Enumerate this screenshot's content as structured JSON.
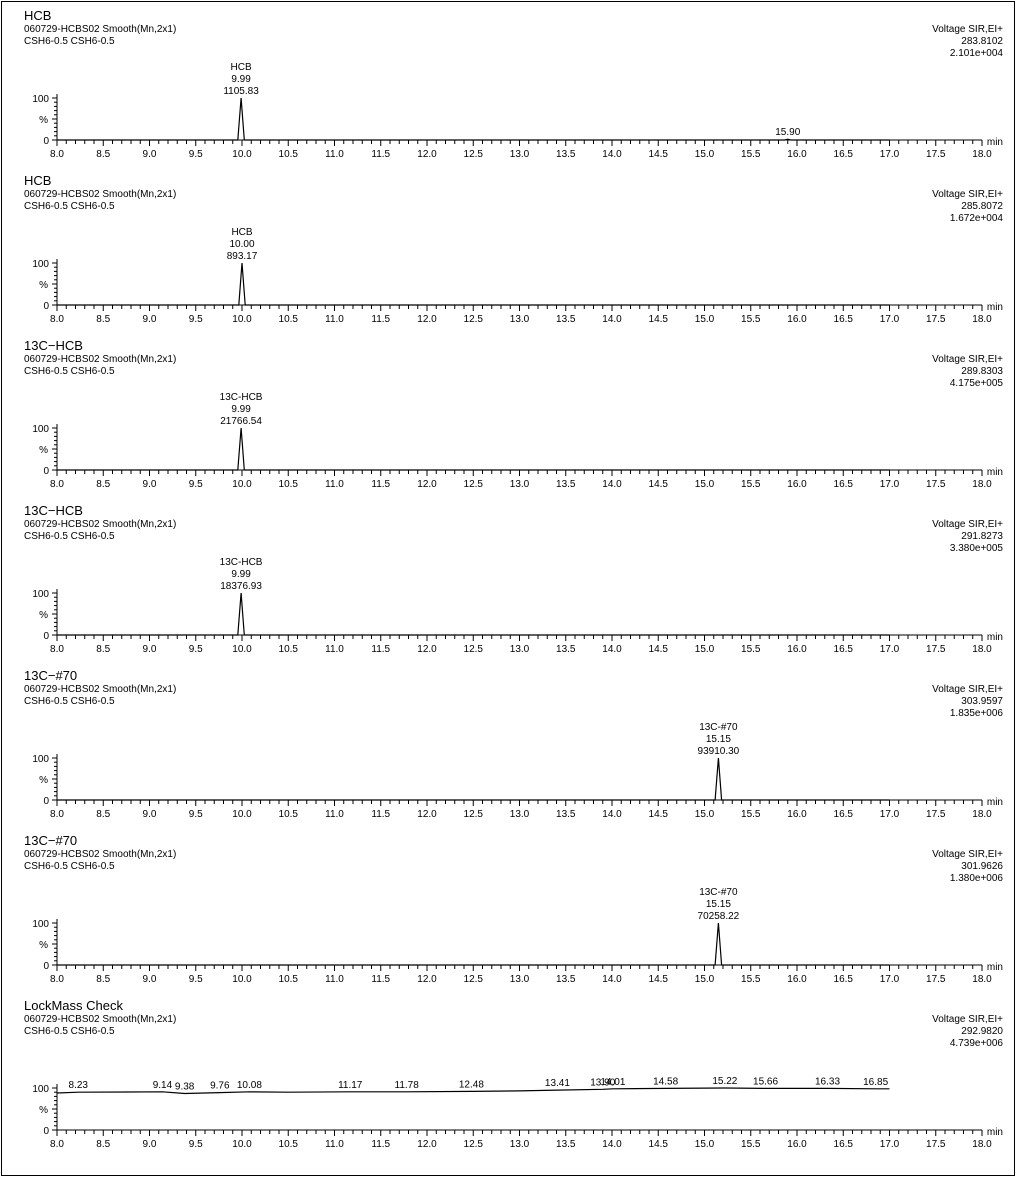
{
  "x_axis": {
    "min": 8.0,
    "max": 18.0,
    "labels": [
      "8.0",
      "8.5",
      "9.0",
      "9.5",
      "10.0",
      "10.5",
      "11.0",
      "11.5",
      "12.0",
      "12.5",
      "13.0",
      "13.5",
      "14.0",
      "14.5",
      "15.0",
      "15.5",
      "16.0",
      "16.5",
      "17.0",
      "17.5",
      "18.0"
    ],
    "unit": "min"
  },
  "y_axis": {
    "ticks": [
      "100",
      "%",
      "0"
    ]
  },
  "chart_data": [
    {
      "type": "line",
      "title": "HCB",
      "sample": "060729-HCBS02  Smooth(Mn,2x1)",
      "subtitle": "CSH6-0.5 CSH6-0.5",
      "channel": "Voltage SIR,EI+",
      "mass": "283.8102",
      "intensity": "2.101e+004",
      "x_range": [
        8.0,
        17.0
      ],
      "peaks": [
        {
          "rt": 9.99,
          "height": 100,
          "labels": [
            "HCB",
            "9.99",
            "1105.83"
          ]
        },
        {
          "rt": 15.9,
          "height": 2,
          "labels": [
            "15.90"
          ]
        }
      ]
    },
    {
      "type": "line",
      "title": "HCB",
      "sample": "060729-HCBS02  Smooth(Mn,2x1)",
      "subtitle": "CSH6-0.5 CSH6-0.5",
      "channel": "Voltage SIR,EI+",
      "mass": "285.8072",
      "intensity": "1.672e+004",
      "x_range": [
        8.0,
        17.0
      ],
      "peaks": [
        {
          "rt": 10.0,
          "height": 100,
          "labels": [
            "HCB",
            "10.00",
            "893.17"
          ]
        }
      ]
    },
    {
      "type": "line",
      "title": "13C−HCB",
      "sample": "060729-HCBS02  Smooth(Mn,2x1)",
      "subtitle": "CSH6-0.5 CSH6-0.5",
      "channel": "Voltage SIR,EI+",
      "mass": "289.8303",
      "intensity": "4.175e+005",
      "x_range": [
        8.0,
        17.0
      ],
      "peaks": [
        {
          "rt": 9.99,
          "height": 100,
          "labels": [
            "13C-HCB",
            "9.99",
            "21766.54"
          ]
        }
      ]
    },
    {
      "type": "line",
      "title": "13C−HCB",
      "sample": "060729-HCBS02  Smooth(Mn,2x1)",
      "subtitle": "CSH6-0.5 CSH6-0.5",
      "channel": "Voltage SIR,EI+",
      "mass": "291.8273",
      "intensity": "3.380e+005",
      "x_range": [
        8.0,
        17.0
      ],
      "peaks": [
        {
          "rt": 9.99,
          "height": 100,
          "labels": [
            "13C-HCB",
            "9.99",
            "18376.93"
          ]
        }
      ]
    },
    {
      "type": "line",
      "title": "13C−#70",
      "sample": "060729-HCBS02  Smooth(Mn,2x1)",
      "subtitle": "CSH6-0.5 CSH6-0.5",
      "channel": "Voltage SIR,EI+",
      "mass": "303.9597",
      "intensity": "1.835e+006",
      "x_range": [
        8.0,
        17.0
      ],
      "peaks": [
        {
          "rt": 15.15,
          "height": 100,
          "labels": [
            "13C-#70",
            "15.15",
            "93910.30"
          ]
        }
      ]
    },
    {
      "type": "line",
      "title": "13C−#70",
      "sample": "060729-HCBS02  Smooth(Mn,2x1)",
      "subtitle": "CSH6-0.5 CSH6-0.5",
      "channel": "Voltage SIR,EI+",
      "mass": "301.9626",
      "intensity": "1.380e+006",
      "x_range": [
        8.0,
        17.0
      ],
      "peaks": [
        {
          "rt": 15.15,
          "height": 100,
          "labels": [
            "13C-#70",
            "15.15",
            "70258.22"
          ]
        }
      ]
    },
    {
      "type": "line",
      "title": "LockMass Check",
      "sample": "060729-HCBS02  Smooth(Mn,2x1)",
      "subtitle": "CSH6-0.5 CSH6-0.5",
      "channel": "Voltage SIR,EI+",
      "mass": "292.9820",
      "intensity": "4.739e+006",
      "x_range": [
        8.0,
        17.0
      ],
      "trace": {
        "x": [
          8.0,
          8.23,
          9.14,
          9.38,
          9.76,
          10.08,
          10.5,
          11.17,
          11.78,
          12.48,
          13.0,
          13.41,
          13.9,
          14.01,
          14.58,
          15.22,
          15.66,
          16.33,
          16.85,
          17.0
        ],
        "y": [
          88,
          90,
          91,
          87,
          89,
          91,
          90,
          91,
          91,
          92,
          93,
          95,
          97,
          98,
          99,
          100,
          99,
          99,
          98,
          98
        ]
      },
      "peaks": [
        {
          "rt": 8.23,
          "height": 90,
          "labels": [
            "8.23"
          ]
        },
        {
          "rt": 9.14,
          "height": 91,
          "labels": [
            "9.14"
          ]
        },
        {
          "rt": 9.38,
          "height": 87,
          "labels": [
            "9.38"
          ]
        },
        {
          "rt": 9.76,
          "height": 89,
          "labels": [
            "9.76"
          ]
        },
        {
          "rt": 10.08,
          "height": 91,
          "labels": [
            "10.08"
          ]
        },
        {
          "rt": 11.17,
          "height": 91,
          "labels": [
            "11.17"
          ]
        },
        {
          "rt": 11.78,
          "height": 91,
          "labels": [
            "11.78"
          ]
        },
        {
          "rt": 12.48,
          "height": 92,
          "labels": [
            "12.48"
          ]
        },
        {
          "rt": 13.41,
          "height": 95,
          "labels": [
            "13.41"
          ]
        },
        {
          "rt": 13.9,
          "height": 97,
          "labels": [
            "13.90"
          ]
        },
        {
          "rt": 14.01,
          "height": 98,
          "labels": [
            "14.01"
          ]
        },
        {
          "rt": 14.58,
          "height": 99,
          "labels": [
            "14.58"
          ]
        },
        {
          "rt": 15.22,
          "height": 100,
          "labels": [
            "15.22"
          ]
        },
        {
          "rt": 15.66,
          "height": 99,
          "labels": [
            "15.66"
          ]
        },
        {
          "rt": 16.33,
          "height": 99,
          "labels": [
            "16.33"
          ]
        },
        {
          "rt": 16.85,
          "height": 98,
          "labels": [
            "16.85"
          ]
        }
      ]
    }
  ]
}
